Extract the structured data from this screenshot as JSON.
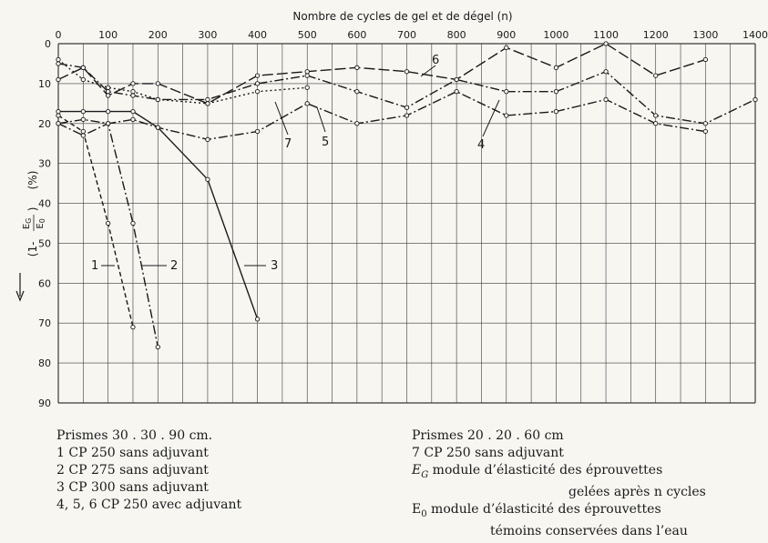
{
  "chart_data": {
    "type": "line",
    "title": "",
    "xlabel": "Nombre de cycles de gel et de dégel (n)",
    "ylabel": "(1- EG/E0) (%)",
    "ylabel_parts": {
      "open": "(1-",
      "num": "E",
      "num_sub": "G",
      "den": "E",
      "den_sub": "0",
      "close": ")",
      "unit": "(%)"
    },
    "x_ticks": [
      "0",
      "100",
      "200",
      "300",
      "400",
      "500",
      "600",
      "700",
      "800",
      "900",
      "1000",
      "1100",
      "1200",
      "1300",
      "1400"
    ],
    "y_ticks": [
      "0",
      "10",
      "20",
      "30",
      "40",
      "50",
      "60",
      "70",
      "80",
      "90"
    ],
    "xlim": [
      0,
      1400
    ],
    "ylim": [
      0,
      90
    ],
    "x_axis_position": "top",
    "y_inverted": true,
    "grid": true,
    "series": [
      {
        "name": "1",
        "dash": "5,3",
        "values": [
          [
            0,
            18
          ],
          [
            50,
            22
          ],
          [
            100,
            45
          ],
          [
            150,
            71
          ]
        ]
      },
      {
        "name": "2",
        "dash": "10,3,2,3",
        "values": [
          [
            0,
            20
          ],
          [
            50,
            23
          ],
          [
            100,
            20
          ],
          [
            150,
            45
          ],
          [
            200,
            76
          ]
        ]
      },
      {
        "name": "3",
        "dash": "",
        "values": [
          [
            0,
            17
          ],
          [
            50,
            17
          ],
          [
            100,
            17
          ],
          [
            150,
            17
          ],
          [
            200,
            21
          ],
          [
            300,
            34
          ],
          [
            400,
            69
          ]
        ]
      },
      {
        "name": "4",
        "dash": "10,3,2,3",
        "values": [
          [
            0,
            5
          ],
          [
            50,
            6
          ],
          [
            100,
            12
          ],
          [
            150,
            13
          ],
          [
            200,
            14
          ],
          [
            300,
            14
          ],
          [
            400,
            10
          ],
          [
            500,
            8
          ],
          [
            600,
            12
          ],
          [
            700,
            16
          ],
          [
            800,
            9
          ],
          [
            900,
            12
          ],
          [
            1000,
            12
          ],
          [
            1100,
            7
          ],
          [
            1200,
            18
          ],
          [
            1300,
            20
          ],
          [
            1400,
            14
          ]
        ]
      },
      {
        "name": "5",
        "dash": "10,3,2,3",
        "values": [
          [
            0,
            20
          ],
          [
            50,
            19
          ],
          [
            100,
            20
          ],
          [
            150,
            19
          ],
          [
            200,
            21
          ],
          [
            300,
            24
          ],
          [
            400,
            22
          ],
          [
            500,
            15
          ],
          [
            600,
            20
          ],
          [
            700,
            18
          ],
          [
            800,
            12
          ],
          [
            900,
            18
          ],
          [
            1000,
            17
          ],
          [
            1100,
            14
          ],
          [
            1200,
            20
          ],
          [
            1300,
            22
          ]
        ]
      },
      {
        "name": "6",
        "dash": "12,4",
        "values": [
          [
            0,
            9
          ],
          [
            50,
            6
          ],
          [
            100,
            13
          ],
          [
            150,
            10
          ],
          [
            200,
            10
          ],
          [
            300,
            15
          ],
          [
            400,
            8
          ],
          [
            500,
            7
          ],
          [
            600,
            6
          ],
          [
            700,
            7
          ],
          [
            800,
            9
          ],
          [
            900,
            1
          ],
          [
            1000,
            6
          ],
          [
            1100,
            0
          ],
          [
            1200,
            8
          ],
          [
            1300,
            4
          ]
        ]
      },
      {
        "name": "7",
        "dash": "2,3",
        "values": [
          [
            0,
            4
          ],
          [
            50,
            9
          ],
          [
            100,
            11
          ],
          [
            150,
            12
          ],
          [
            200,
            14
          ],
          [
            300,
            15
          ],
          [
            400,
            12
          ],
          [
            500,
            11
          ]
        ]
      }
    ],
    "series_labels": [
      {
        "text": "1"
      },
      {
        "text": "2"
      },
      {
        "text": "3"
      },
      {
        "text": "4"
      },
      {
        "text": "5"
      },
      {
        "text": "6"
      },
      {
        "text": "7"
      }
    ]
  },
  "legend": {
    "left": [
      "Prismes 30 . 30 . 90 cm.",
      "1 CP 250 sans adjuvant",
      "2 CP 275 sans adjuvant",
      "3 CP 300 sans adjuvant",
      "4, 5, 6 CP 250 avec adjuvant"
    ],
    "right": {
      "line1": "Prismes 20 . 20 . 60 cm",
      "line2": "7 CP 250 sans adjuvant",
      "eg_symbol": "E",
      "eg_sub": "G",
      "eg_text": " module d’élasticité des éprouvettes",
      "eg_cont": "gelées après n cycles",
      "e0_symbol": "E",
      "e0_sub": "0",
      "e0_text": " module d’élasticité des éprouvettes",
      "e0_cont": "témoins conservées dans l’eau"
    }
  }
}
